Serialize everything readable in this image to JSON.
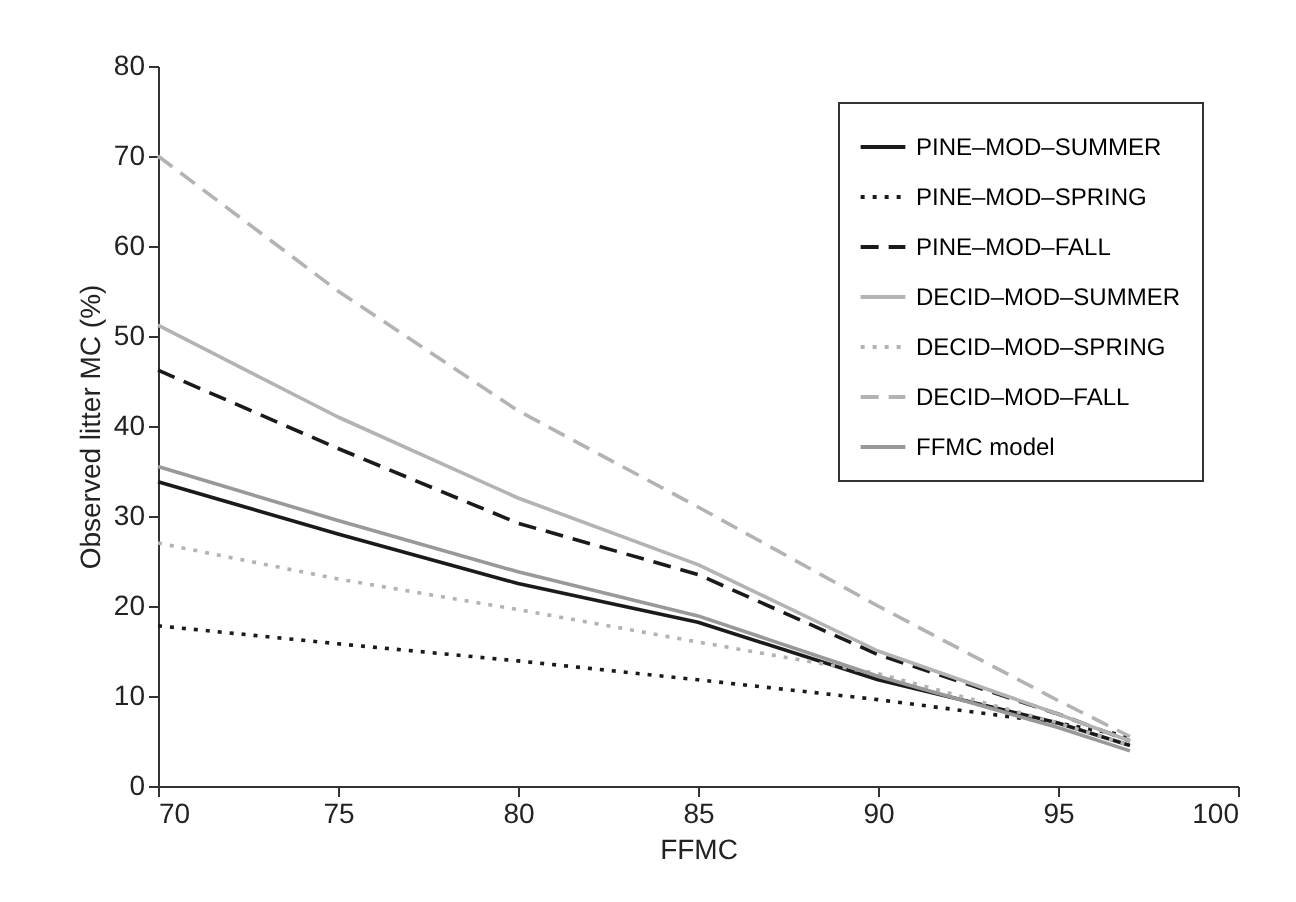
{
  "chart_data": {
    "type": "line",
    "xlabel": "FFMC",
    "ylabel": "Observed litter MC (%)",
    "xlim": [
      70,
      100
    ],
    "xticks": [
      70,
      75,
      80,
      85,
      90,
      95,
      100
    ],
    "ylim": [
      0,
      80
    ],
    "yticks": [
      0,
      10,
      20,
      30,
      40,
      50,
      60,
      70,
      80
    ],
    "grid": false,
    "legend": "top right",
    "x": [
      70,
      75,
      80,
      85,
      90,
      95,
      97
    ],
    "series": [
      {
        "name": "PINE–MOD–SUMMER",
        "color": "#1a1a1a",
        "line_style": "solid",
        "values": [
          33.8,
          28,
          22.5,
          18.2,
          11.8,
          7,
          4.5
        ]
      },
      {
        "name": "PINE–MOD–SPRING",
        "color": "#1a1a1a",
        "line_style": "dotted",
        "values": [
          17.8,
          15.8,
          13.9,
          11.8,
          9.6,
          7,
          5.5
        ]
      },
      {
        "name": "PINE–MOD–FALL",
        "color": "#1a1a1a",
        "line_style": "dashed",
        "values": [
          46.2,
          37.5,
          29.2,
          23.5,
          14.6,
          8,
          5
        ]
      },
      {
        "name": "DECID–MOD–SUMMER",
        "color": "#b3b3b3",
        "line_style": "solid",
        "values": [
          51.2,
          41,
          32,
          24.6,
          15,
          8,
          5
        ]
      },
      {
        "name": "DECID–MOD–SPRING",
        "color": "#b3b3b3",
        "line_style": "dotted",
        "values": [
          27,
          23,
          19.6,
          16,
          12.5,
          7,
          4.5
        ]
      },
      {
        "name": "DECID–MOD–FALL",
        "color": "#b3b3b3",
        "line_style": "dashed",
        "values": [
          70,
          55,
          41.7,
          31,
          20,
          9.5,
          5.5
        ]
      },
      {
        "name": "FFMC model",
        "color": "#999999",
        "line_style": "solid",
        "values": [
          35.5,
          29.5,
          23.8,
          18.9,
          12.2,
          6.5,
          3.9
        ]
      }
    ]
  }
}
